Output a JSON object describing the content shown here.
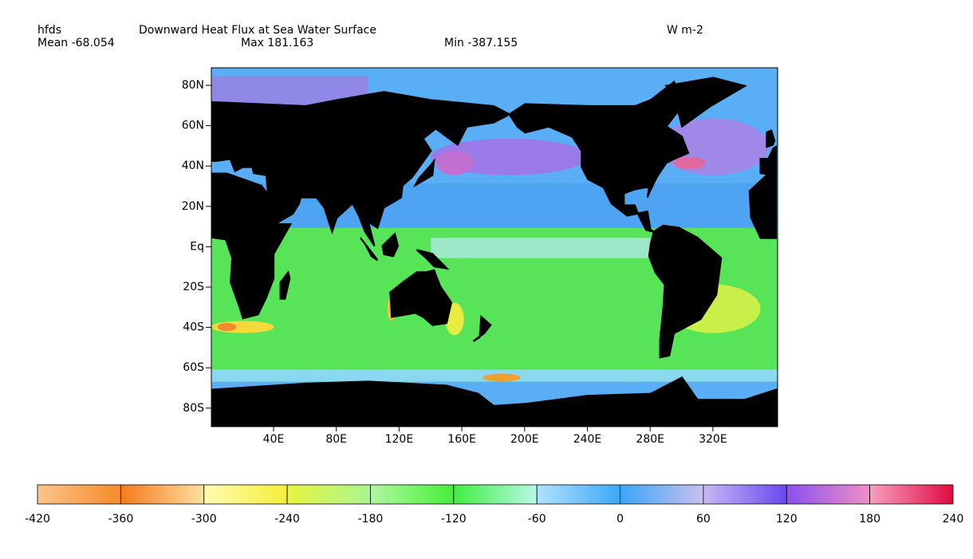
{
  "header": {
    "variable": "hfds",
    "title": "Downward Heat Flux at Sea Water Surface",
    "units": "W m-2",
    "mean": "Mean -68.054",
    "max": "Max 181.163",
    "min": "Min -387.155"
  },
  "map": {
    "lat_ticks": [
      "80N",
      "60N",
      "40N",
      "20N",
      "Eq",
      "20S",
      "40S",
      "60S",
      "80S"
    ],
    "lon_ticks": [
      "40E",
      "80E",
      "120E",
      "160E",
      "200E",
      "240E",
      "280E",
      "320E"
    ]
  },
  "colorbar": {
    "ticks": [
      "-420",
      "-360",
      "-300",
      "-240",
      "-180",
      "-120",
      "-60",
      "0",
      "60",
      "120",
      "180",
      "240"
    ],
    "colors": [
      [
        "#fbc58a",
        "#f58a2a"
      ],
      [
        "#f47a1f",
        "#fde0a0"
      ],
      [
        "#fffcb0",
        "#f5ef3a"
      ],
      [
        "#e8f540",
        "#a8f590"
      ],
      [
        "#b0f8a0",
        "#48ee3a"
      ],
      [
        "#40ee40",
        "#b8f8e8"
      ],
      [
        "#b0e2ff",
        "#3ea8f5"
      ],
      [
        "#3aa6f5",
        "#c8c0f0"
      ],
      [
        "#c8b8f5",
        "#6a48f0"
      ],
      [
        "#8a50ee",
        "#f090c8"
      ],
      [
        "#f8a0c0",
        "#e00a40"
      ]
    ]
  }
}
